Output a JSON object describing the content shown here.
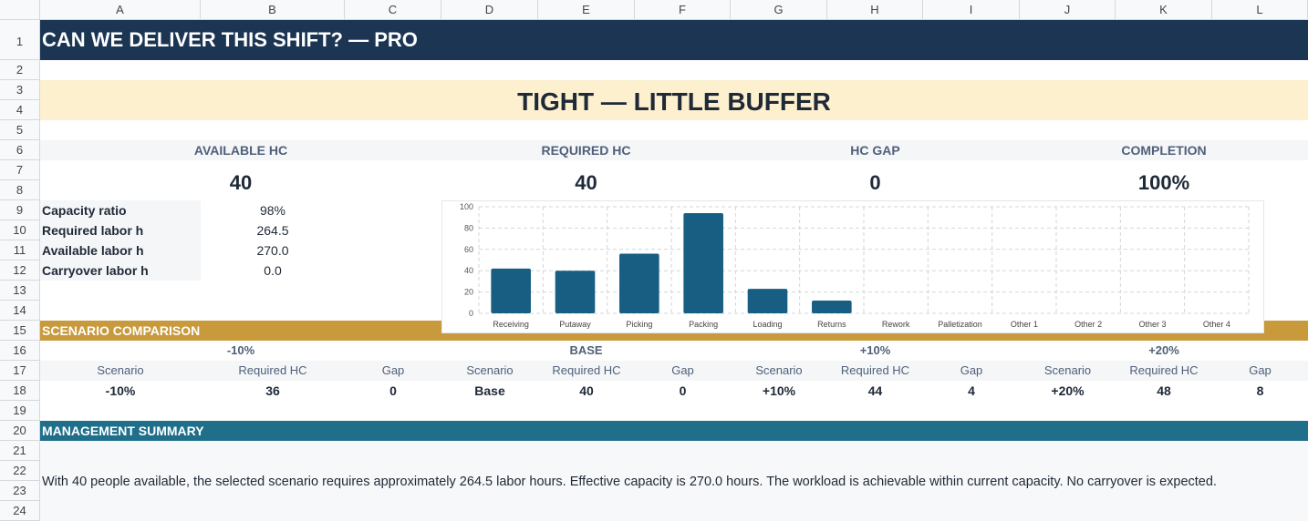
{
  "columns": [
    "A",
    "B",
    "C",
    "D",
    "E",
    "F",
    "G",
    "H",
    "I",
    "J",
    "K",
    "L"
  ],
  "rows": [
    "1",
    "2",
    "3",
    "4",
    "5",
    "6",
    "7",
    "8",
    "9",
    "10",
    "11",
    "12",
    "13",
    "14",
    "15",
    "16",
    "17",
    "18",
    "19",
    "20",
    "21",
    "22",
    "23",
    "24"
  ],
  "title": "CAN WE DELIVER THIS SHIFT? — PRO",
  "status": "TIGHT — LITTLE BUFFER",
  "kpis": [
    {
      "label": "AVAILABLE HC",
      "value": "40"
    },
    {
      "label": "REQUIRED HC",
      "value": "40"
    },
    {
      "label": "HC GAP",
      "value": "0"
    },
    {
      "label": "COMPLETION",
      "value": "100%"
    }
  ],
  "metrics": [
    {
      "label": "Capacity ratio",
      "value": "98%"
    },
    {
      "label": "Required labor h",
      "value": "264.5"
    },
    {
      "label": "Available labor h",
      "value": "270.0"
    },
    {
      "label": "Carryover labor h",
      "value": "0.0"
    }
  ],
  "chart_data": {
    "type": "bar",
    "categories": [
      "Receiving",
      "Putaway",
      "Picking",
      "Packing",
      "Loading",
      "Returns",
      "Rework",
      "Palletization",
      "Other 1",
      "Other 2",
      "Other 3",
      "Other 4"
    ],
    "values": [
      42,
      40,
      56,
      94,
      23,
      12,
      0,
      0,
      0,
      0,
      0,
      0
    ],
    "ylim": [
      0,
      100
    ],
    "yticks": [
      0,
      20,
      40,
      60,
      80,
      100
    ],
    "grid": true,
    "color": "#175e82"
  },
  "scenario_section": "SCENARIO COMPARISON",
  "scenarios": [
    {
      "group": "-10%",
      "headers": [
        "Scenario",
        "Required HC",
        "Gap"
      ],
      "values": [
        "-10%",
        "36",
        "0"
      ]
    },
    {
      "group": "BASE",
      "headers": [
        "Scenario",
        "Required HC",
        "Gap"
      ],
      "values": [
        "Base",
        "40",
        "0"
      ]
    },
    {
      "group": "+10%",
      "headers": [
        "Scenario",
        "Required HC",
        "Gap"
      ],
      "values": [
        "+10%",
        "44",
        "4"
      ]
    },
    {
      "group": "+20%",
      "headers": [
        "Scenario",
        "Required HC",
        "Gap"
      ],
      "values": [
        "+20%",
        "48",
        "8"
      ]
    }
  ],
  "summary_section": "MANAGEMENT SUMMARY",
  "summary_text": "With 40 people available, the selected scenario requires approximately 264.5 labor hours. Effective capacity is 270.0 hours. The workload is achievable within current capacity. No carryover is expected.",
  "colors": {
    "title_bg": "#1b3553",
    "status_bg": "#fdf0cf",
    "scenario_bg": "#c89a3c",
    "summary_bg": "#1f6f8b",
    "bar": "#175e82"
  }
}
